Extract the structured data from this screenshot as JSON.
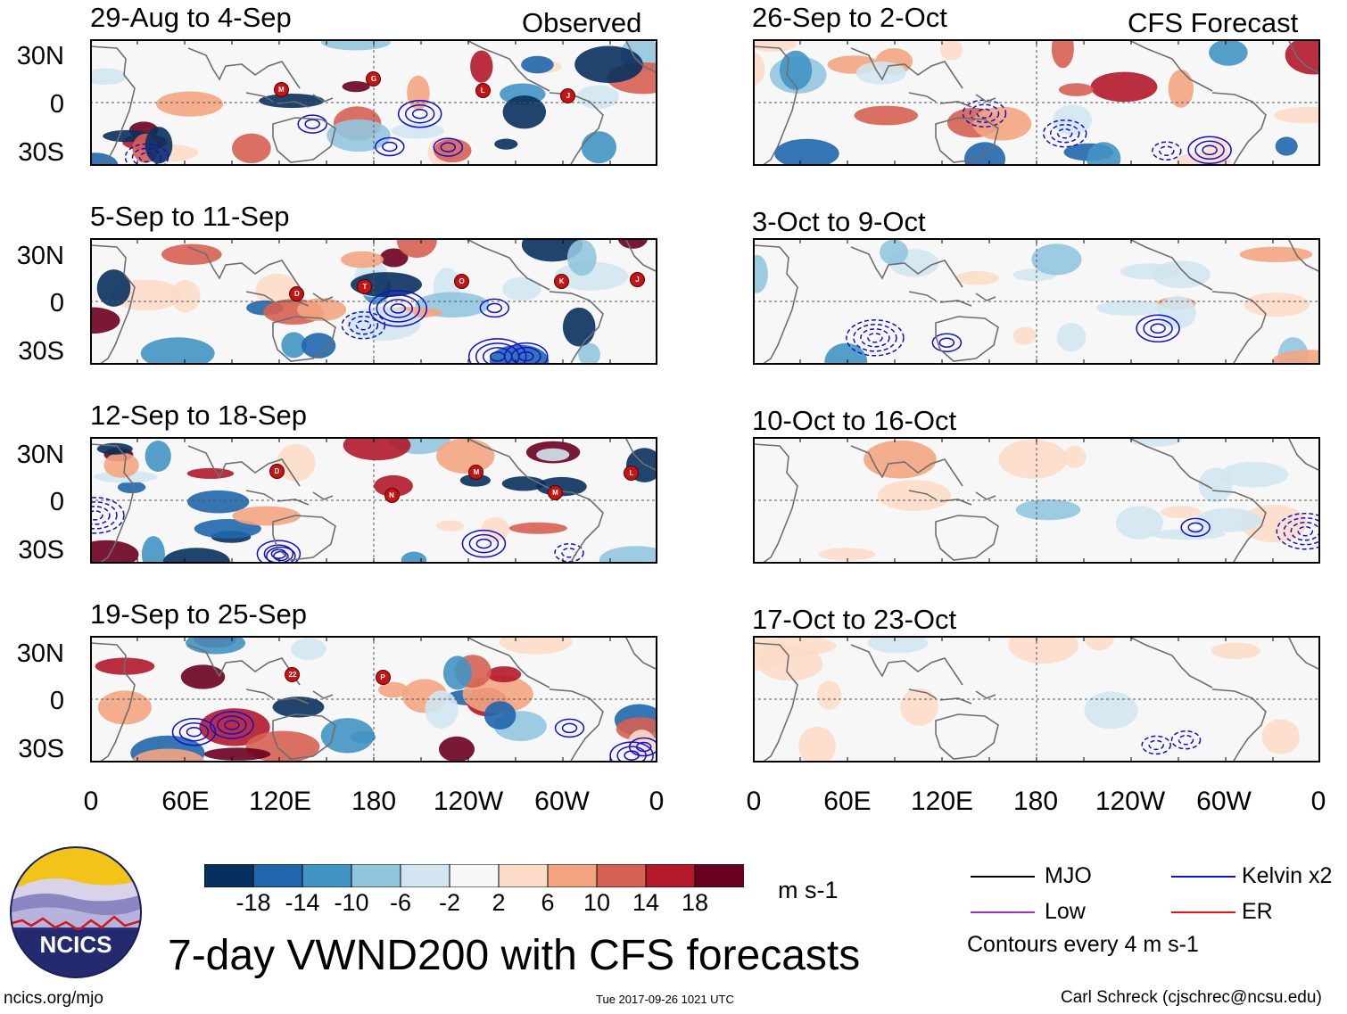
{
  "titles": {
    "observed": "Observed",
    "forecast": "CFS Forecast",
    "main": "7-day VWND200 with CFS forecasts"
  },
  "observed_panels": [
    {
      "period": "29-Aug to 4-Sep",
      "storm_markers": [
        "M",
        "G",
        "L",
        "J"
      ]
    },
    {
      "period": "5-Sep to 11-Sep",
      "storm_markers": [
        "D",
        "T",
        "O",
        "K",
        "J"
      ]
    },
    {
      "period": "12-Sep to 18-Sep",
      "storm_markers": [
        "D",
        "N",
        "M",
        "M",
        "L"
      ]
    },
    {
      "period": "19-Sep to 25-Sep",
      "storm_markers": [
        "22",
        "P"
      ]
    }
  ],
  "forecast_panels": [
    {
      "period": "26-Sep to 2-Oct"
    },
    {
      "period": "3-Oct to 9-Oct"
    },
    {
      "period": "10-Oct to 16-Oct"
    },
    {
      "period": "17-Oct to 23-Oct"
    }
  ],
  "lat_labels": [
    "30N",
    "0",
    "30S"
  ],
  "lon_labels": [
    "0",
    "60E",
    "120E",
    "180",
    "120W",
    "60W",
    "0"
  ],
  "colorbar": {
    "unit": "m s-1",
    "ticks": [
      "-18",
      "-14",
      "-10",
      "-6",
      "-2",
      "2",
      "6",
      "10",
      "14",
      "18"
    ],
    "colors": [
      "#08305e",
      "#1f66ac",
      "#4294c4",
      "#92c5de",
      "#d2e5f0",
      "#f7f7f7",
      "#fcdbc8",
      "#f3a582",
      "#d66152",
      "#b3182b",
      "#6a0020"
    ]
  },
  "legend": {
    "items": [
      {
        "label": "MJO",
        "color": "#000000"
      },
      {
        "label": "Kelvin x2",
        "color": "#1010d0"
      },
      {
        "label": "Low",
        "color": "#9933cc"
      },
      {
        "label": "ER",
        "color": "#ee1111"
      }
    ],
    "contour_note": "Contours every 4 m s-1"
  },
  "logo_text": "NCICS",
  "footer": {
    "url": "ncics.org/mjo",
    "timestamp": "Tue 2017-09-26 1021 UTC",
    "author": "Carl Schreck (cjschrec@ncsu.edu)"
  }
}
